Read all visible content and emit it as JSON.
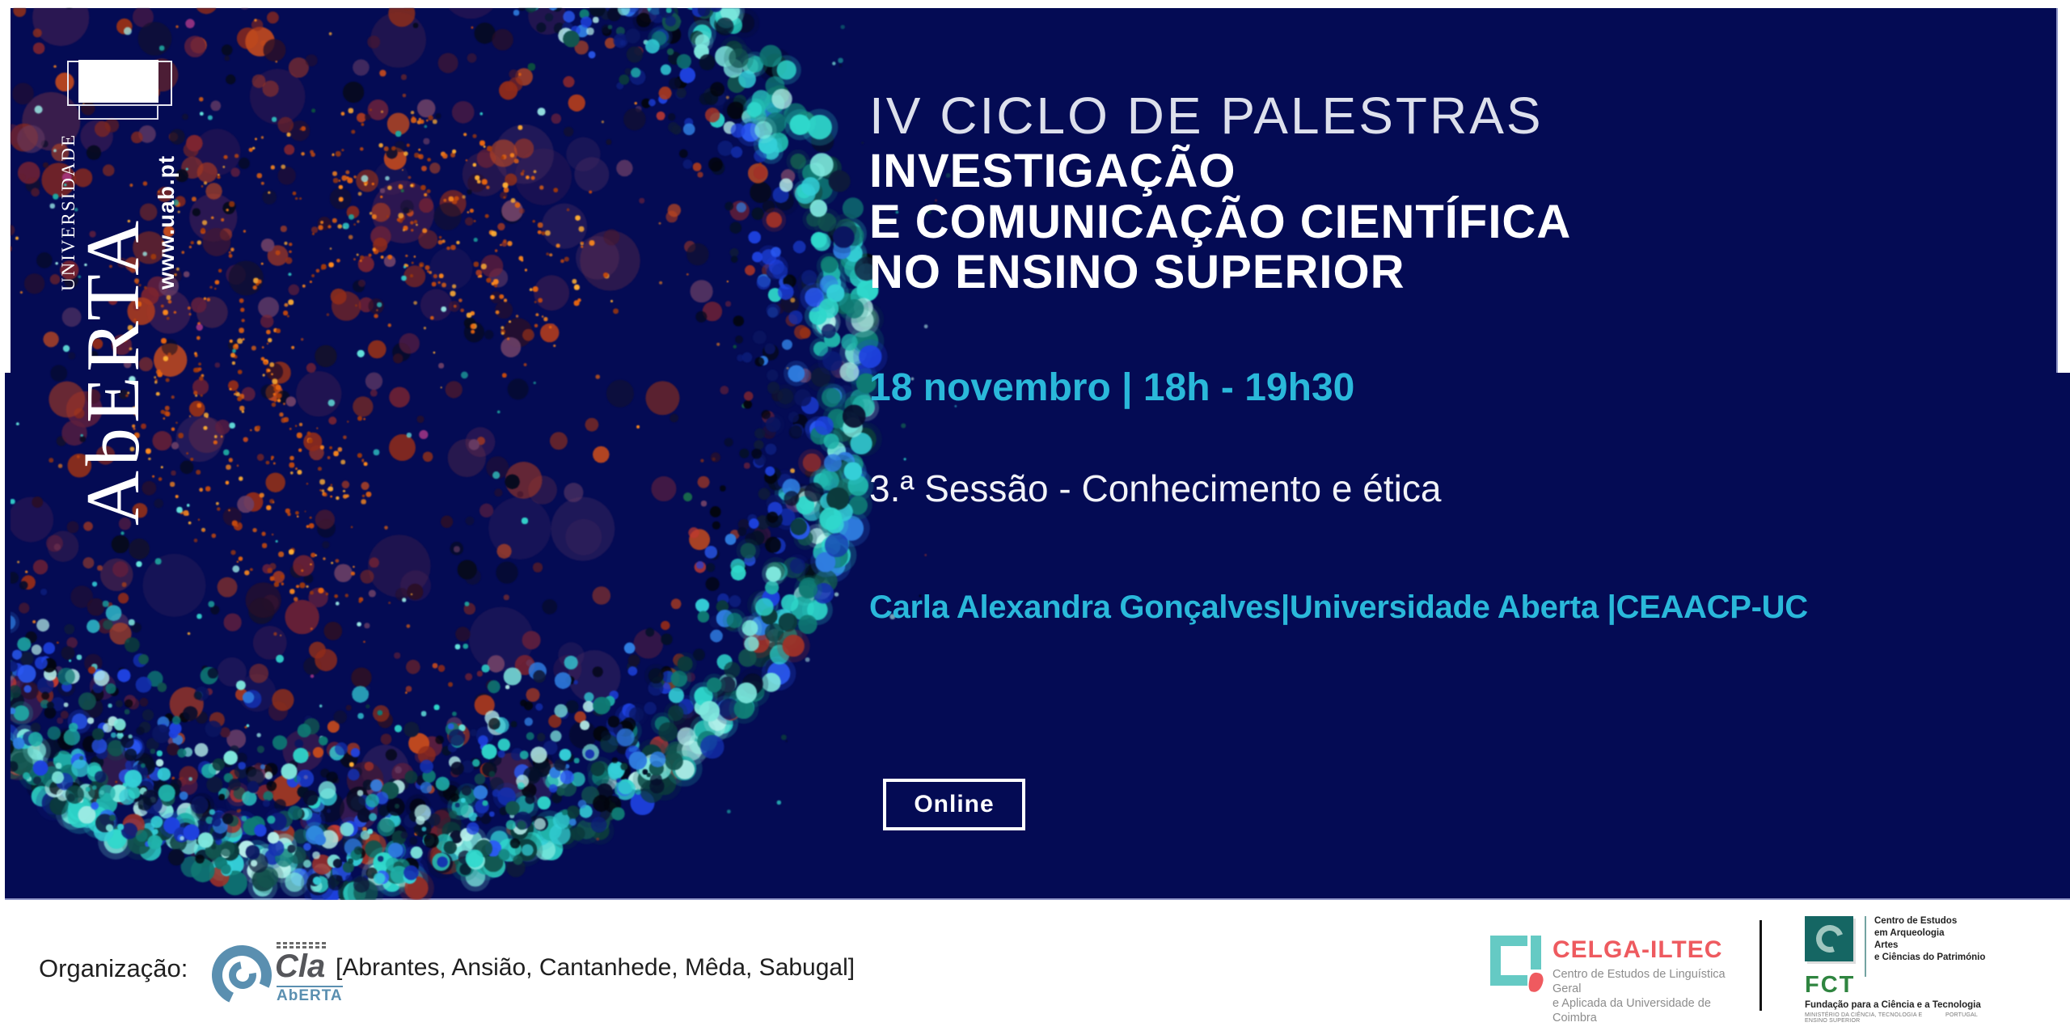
{
  "banner": {
    "title_light": "IV CICLO DE PALESTRAS",
    "title_bold_lines": [
      "INVESTIGAÇÃO",
      "E COMUNICAÇÃO CIENTÍFICA",
      "NO ENSINO SUPERIOR"
    ],
    "datetime": "18 novembro | 18h - 19h30",
    "session": "3.ª Sessão - Conhecimento e ética",
    "speaker": "Carla Alexandra Gonçalves|Universidade Aberta |CEAACP-UC",
    "online_label": "Online"
  },
  "uab_logo": {
    "university": "UNIVERSIDADE",
    "name": "AbERTA",
    "website": "www.uab.pt"
  },
  "footer": {
    "organization_label": "Organização:",
    "locations": "[Abrantes, Ansião, Cantanhede, Mêda, Sabugal]",
    "ecla": {
      "name": "Cla",
      "sub": "AbERTA"
    },
    "celga": {
      "name": "CELGA-ILTEC",
      "line1": "Centro de Estudos de Linguística Geral",
      "line2": "e Aplicada da Universidade de Coimbra"
    },
    "ceaacp": {
      "lines": [
        "Centro de Estudos",
        "em Arquеologia",
        "Artes",
        "e Ciências do Património"
      ]
    },
    "fct": {
      "name": "FCT",
      "line1": "Fundação para a Ciência e a Tecnologia",
      "line2": "MINISTÉRIO DA CIÊNCIA, TECNOLOGIA E ENSINO SUPERIOR",
      "line3": "PORTUGAL"
    }
  },
  "colors": {
    "navy": "#040b54",
    "accent_cyan": "#2ab8da",
    "panel_edge": "#9097c8",
    "celga_red": "#ee5a5f",
    "celga_teal": "#65cac4",
    "ceaacp_teal": "#156663",
    "fct_green": "#2f8540",
    "ecla_blue": "#5a8fb0"
  }
}
